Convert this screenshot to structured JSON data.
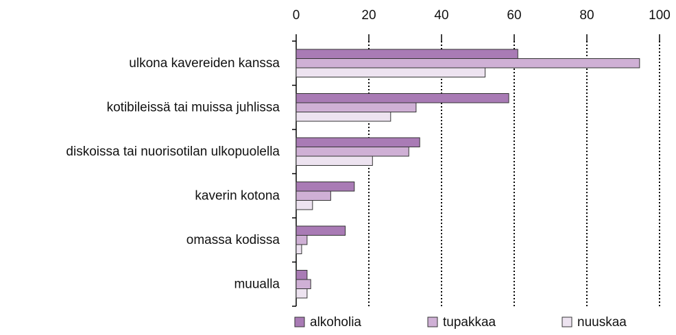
{
  "chart_data": {
    "type": "bar",
    "orientation": "horizontal",
    "categories": [
      "ulkona kavereiden kanssa",
      "kotibileissä tai muissa juhlissa",
      "diskoissa tai nuorisotilan ulkopuolella",
      "kaverin kotona",
      "omassa kodissa",
      "muualla"
    ],
    "series": [
      {
        "name": "alkoholia",
        "color": "#a97bb5",
        "values": [
          61,
          58.5,
          34,
          16,
          13.5,
          3
        ]
      },
      {
        "name": "tupakkaa",
        "color": "#cfb0d5",
        "values": [
          94.5,
          33,
          31,
          9.5,
          3,
          4
        ]
      },
      {
        "name": "nuuskaa",
        "color": "#ede3f0",
        "values": [
          52,
          26,
          21,
          4.5,
          1.5,
          3
        ]
      }
    ],
    "xlim": [
      0,
      100
    ],
    "xticks": [
      0,
      20,
      40,
      60,
      80,
      100
    ],
    "grid": true,
    "legend": "bottom"
  }
}
